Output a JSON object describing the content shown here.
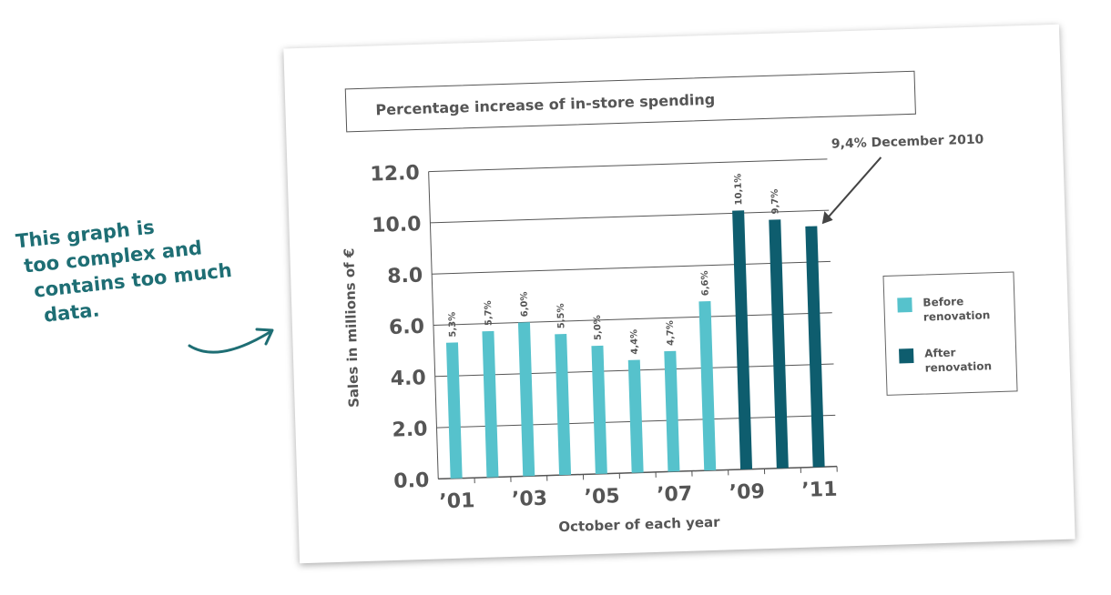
{
  "annotation": {
    "lines": [
      "This graph is",
      "too complex and",
      "contains too much",
      "data."
    ],
    "color": "#1e6e74"
  },
  "chart_data": {
    "type": "bar",
    "title": "Percentage increase of in-store spending",
    "xlabel": "October of each year",
    "ylabel": "Sales in millions of €",
    "ylim": [
      0,
      12
    ],
    "yticks": [
      "0.0",
      "2.0",
      "4.0",
      "6.0",
      "8.0",
      "10.0",
      "12.0"
    ],
    "xticks": [
      "’01",
      "’03",
      "’05",
      "’07",
      "’09",
      "’11"
    ],
    "bars": [
      {
        "label": "5,3%",
        "value": 5.3,
        "series": "before"
      },
      {
        "label": "5,7%",
        "value": 5.7,
        "series": "before"
      },
      {
        "label": "6,0%",
        "value": 6.0,
        "series": "before"
      },
      {
        "label": "5,5%",
        "value": 5.5,
        "series": "before"
      },
      {
        "label": "5,0%",
        "value": 5.0,
        "series": "before"
      },
      {
        "label": "4,4%",
        "value": 4.4,
        "series": "before"
      },
      {
        "label": "4,7%",
        "value": 4.7,
        "series": "before"
      },
      {
        "label": "6,6%",
        "value": 6.6,
        "series": "before"
      },
      {
        "label": "10,1%",
        "value": 10.1,
        "series": "after"
      },
      {
        "label": "9,7%",
        "value": 9.7,
        "series": "after"
      },
      {
        "label": "",
        "value": 9.4,
        "series": "after"
      }
    ],
    "callout": "9,4% December 2010",
    "legend": {
      "before": "Before renovation",
      "after": "After renovation"
    },
    "colors": {
      "before": "#56c2cc",
      "after": "#0e5d6e",
      "grid": "#555555",
      "text": "#555555"
    }
  }
}
